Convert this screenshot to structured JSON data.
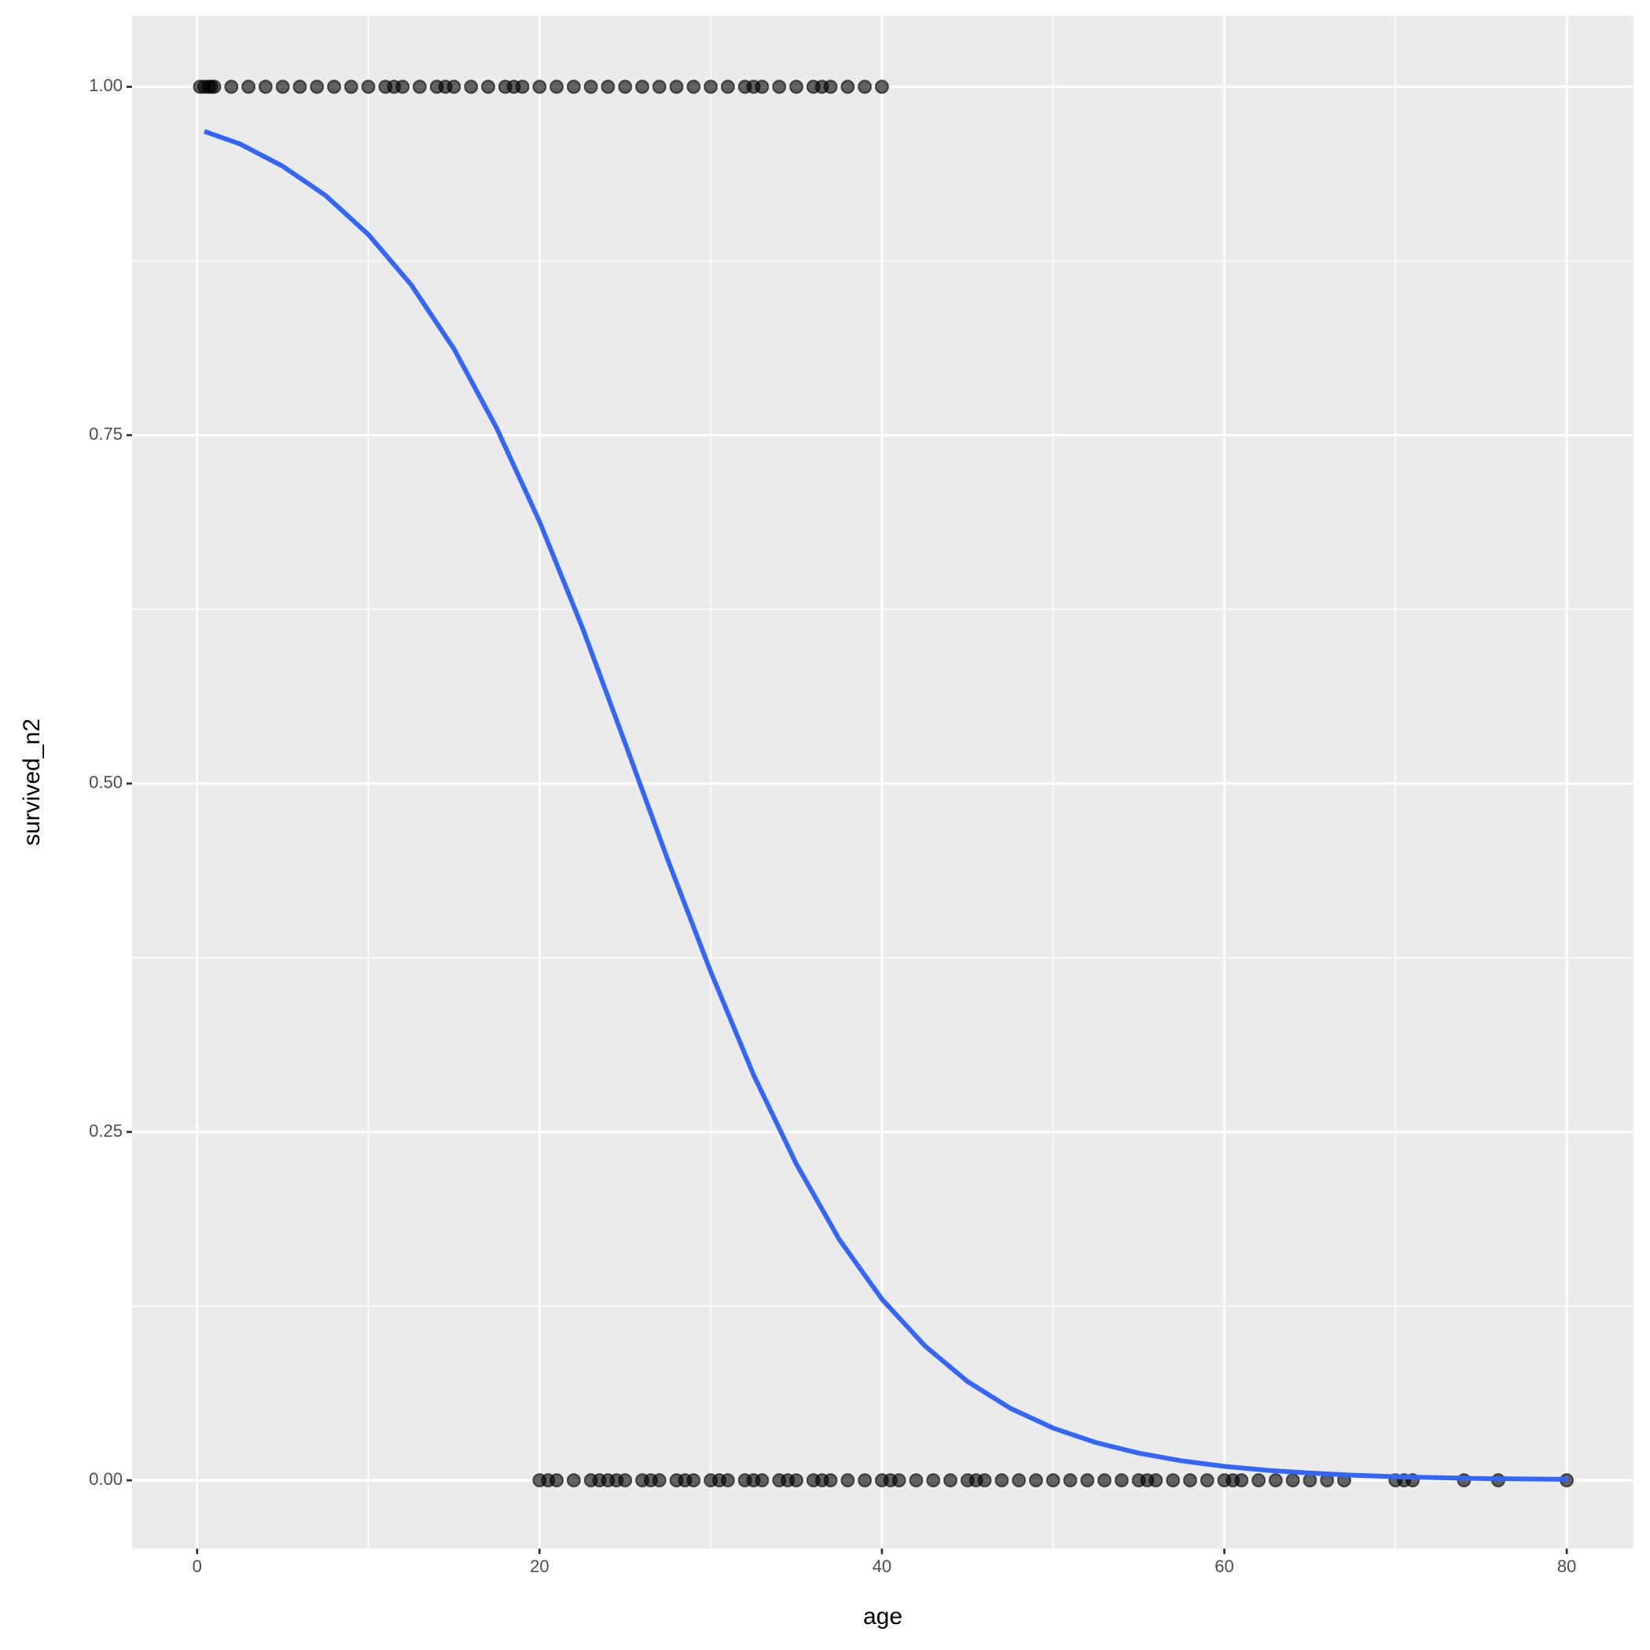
{
  "chart_data": {
    "type": "scatter",
    "xlabel": "age",
    "ylabel": "survived_n2",
    "xlim": [
      -3.8,
      83.9
    ],
    "ylim": [
      -0.049,
      1.051
    ],
    "xticks": [
      0,
      20,
      40,
      60,
      80
    ],
    "yticks": [
      {
        "value": 0,
        "label": "0.00"
      },
      {
        "value": 0.25,
        "label": "0.25"
      },
      {
        "value": 0.5,
        "label": "0.50"
      },
      {
        "value": 0.75,
        "label": "0.75"
      },
      {
        "value": 1,
        "label": "1.00"
      }
    ],
    "grid": true,
    "series": [
      {
        "mode": "points",
        "color": "#000000",
        "x": [
          0.17,
          0.42,
          0.67,
          0.83,
          1,
          2,
          3,
          4,
          5,
          6,
          7,
          8,
          9,
          10,
          11,
          11.5,
          12,
          13,
          14,
          14.5,
          15,
          16,
          17,
          18,
          18.5,
          19,
          20,
          21,
          22,
          23,
          24,
          25,
          26,
          27,
          28,
          29,
          30,
          31,
          32,
          32.5,
          33,
          34,
          35,
          36,
          36.5,
          37,
          38,
          39,
          40
        ],
        "values": [
          1,
          1,
          1,
          1,
          1,
          1,
          1,
          1,
          1,
          1,
          1,
          1,
          1,
          1,
          1,
          1,
          1,
          1,
          1,
          1,
          1,
          1,
          1,
          1,
          1,
          1,
          1,
          1,
          1,
          1,
          1,
          1,
          1,
          1,
          1,
          1,
          1,
          1,
          1,
          1,
          1,
          1,
          1,
          1,
          1,
          1,
          1,
          1,
          1
        ]
      },
      {
        "mode": "points",
        "color": "#000000",
        "x": [
          20,
          20.5,
          21,
          22,
          23,
          23.5,
          24,
          24.5,
          25,
          26,
          26.5,
          27,
          28,
          28.5,
          29,
          30,
          30.5,
          31,
          32,
          32.5,
          33,
          34,
          34.5,
          35,
          36,
          36.5,
          37,
          38,
          39,
          40,
          40.5,
          41,
          42,
          43,
          44,
          45,
          45.5,
          46,
          47,
          48,
          49,
          50,
          51,
          52,
          53,
          54,
          55,
          55.5,
          56,
          57,
          58,
          59,
          60,
          60.5,
          61,
          62,
          63,
          64,
          65,
          66,
          67,
          70,
          70.5,
          71,
          74,
          76,
          80
        ],
        "values": [
          0,
          0,
          0,
          0,
          0,
          0,
          0,
          0,
          0,
          0,
          0,
          0,
          0,
          0,
          0,
          0,
          0,
          0,
          0,
          0,
          0,
          0,
          0,
          0,
          0,
          0,
          0,
          0,
          0,
          0,
          0,
          0,
          0,
          0,
          0,
          0,
          0,
          0,
          0,
          0,
          0,
          0,
          0,
          0,
          0,
          0,
          0,
          0,
          0,
          0,
          0,
          0,
          0,
          0,
          0,
          0,
          0,
          0,
          0,
          0,
          0,
          0,
          0,
          0,
          0,
          0,
          0
        ]
      },
      {
        "mode": "line",
        "color": "#3366FF",
        "x": [
          0.42,
          2.5,
          5,
          7.5,
          10,
          12.5,
          15,
          17.5,
          20,
          22.5,
          25,
          27.5,
          30,
          32.5,
          35,
          37.5,
          40,
          42.5,
          45,
          47.5,
          50,
          52.5,
          55,
          57.5,
          60,
          62.5,
          65,
          67.5,
          70,
          72.5,
          75,
          77.5,
          80
        ],
        "values": [
          0.968,
          0.959,
          0.943,
          0.922,
          0.894,
          0.858,
          0.812,
          0.755,
          0.688,
          0.612,
          0.529,
          0.445,
          0.365,
          0.291,
          0.227,
          0.173,
          0.13,
          0.0966,
          0.0709,
          0.0517,
          0.0375,
          0.0271,
          0.0195,
          0.014,
          0.01,
          0.0072,
          0.0052,
          0.0037,
          0.0026,
          0.0019,
          0.0013,
          0.00096,
          0.00069
        ]
      }
    ]
  }
}
